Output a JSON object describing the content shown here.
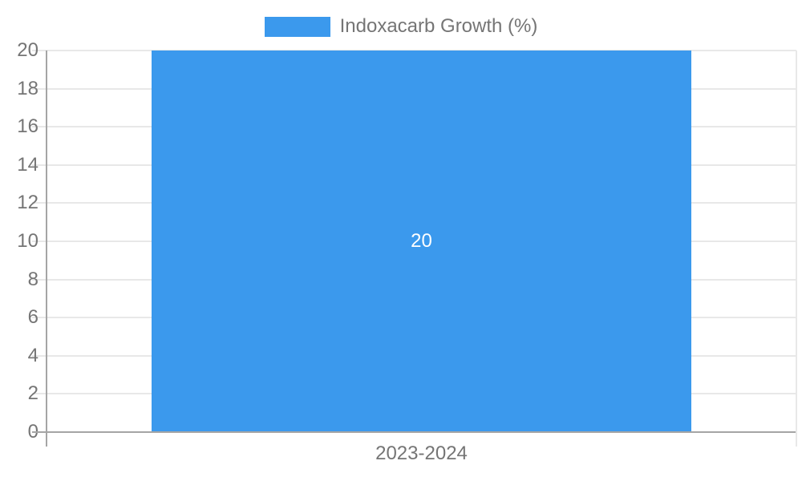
{
  "chart_data": {
    "type": "bar",
    "title": "",
    "categories": [
      "2023-2024"
    ],
    "series": [
      {
        "name": "Indoxacarb Growth (%)",
        "values": [
          20
        ]
      }
    ],
    "bar_value_labels": [
      "20"
    ],
    "ylim": [
      0,
      20
    ],
    "ytick_step": 2,
    "ytick_labels": [
      "0",
      "2",
      "4",
      "6",
      "8",
      "10",
      "12",
      "14",
      "16",
      "18",
      "20"
    ],
    "grid": true,
    "legend_position": "top-center",
    "colors": {
      "bar": "#3b99ed",
      "axis_text": "#757575",
      "axis_line": "#a5a5a5",
      "gridline": "#e8e8e8",
      "bar_label": "#ffffff",
      "background": "#ffffff"
    }
  }
}
